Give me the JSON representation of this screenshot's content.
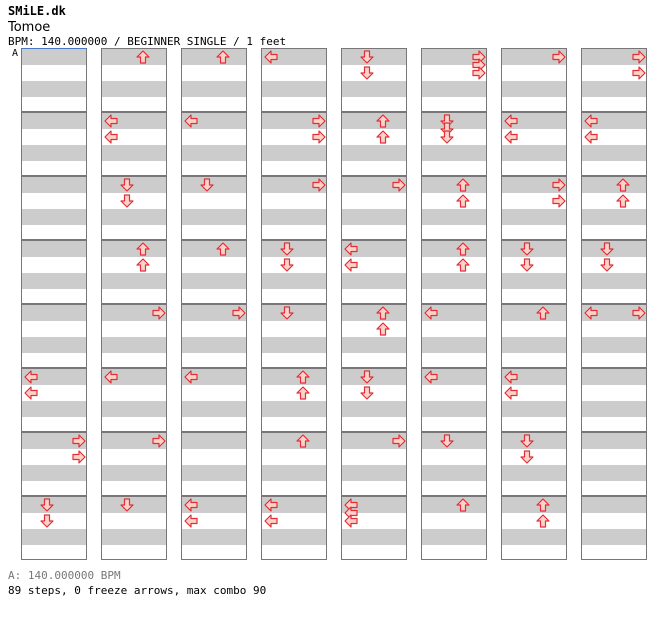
{
  "header": {
    "site": "SMiLE.dk",
    "song_title": "Tomoe",
    "meta": "BPM: 140.000000 / BEGINNER SINGLE / 1 feet",
    "bpm_marker": "A"
  },
  "footer": {
    "bpm_line": "A: 140.000000 BPM",
    "stats": "89 steps, 0 freeze arrows, max combo 90"
  },
  "colors": {
    "arrow_fill": "#ffd0d0",
    "arrow_stroke": "#e03030",
    "beat_band": "#cccccc"
  },
  "chart": {
    "columns": 8,
    "measures_per_column": 8,
    "rows_per_measure": 8,
    "lanes": [
      "left",
      "down",
      "up",
      "right"
    ],
    "notes": [
      {
        "c": 0,
        "m": 5,
        "r": 0,
        "d": "left"
      },
      {
        "c": 0,
        "m": 5,
        "r": 2,
        "d": "left"
      },
      {
        "c": 0,
        "m": 6,
        "r": 0,
        "d": "right"
      },
      {
        "c": 0,
        "m": 6,
        "r": 2,
        "d": "right"
      },
      {
        "c": 0,
        "m": 7,
        "r": 0,
        "d": "down"
      },
      {
        "c": 0,
        "m": 7,
        "r": 2,
        "d": "down"
      },
      {
        "c": 1,
        "m": 0,
        "r": 0,
        "d": "up"
      },
      {
        "c": 1,
        "m": 1,
        "r": 0,
        "d": "left"
      },
      {
        "c": 1,
        "m": 1,
        "r": 2,
        "d": "left"
      },
      {
        "c": 1,
        "m": 2,
        "r": 0,
        "d": "down"
      },
      {
        "c": 1,
        "m": 2,
        "r": 2,
        "d": "down"
      },
      {
        "c": 1,
        "m": 3,
        "r": 0,
        "d": "up"
      },
      {
        "c": 1,
        "m": 3,
        "r": 2,
        "d": "up"
      },
      {
        "c": 1,
        "m": 4,
        "r": 0,
        "d": "right"
      },
      {
        "c": 1,
        "m": 5,
        "r": 0,
        "d": "left"
      },
      {
        "c": 1,
        "m": 6,
        "r": 0,
        "d": "right"
      },
      {
        "c": 1,
        "m": 7,
        "r": 0,
        "d": "down"
      },
      {
        "c": 2,
        "m": 0,
        "r": 0,
        "d": "up"
      },
      {
        "c": 2,
        "m": 1,
        "r": 0,
        "d": "left"
      },
      {
        "c": 2,
        "m": 2,
        "r": 0,
        "d": "down"
      },
      {
        "c": 2,
        "m": 3,
        "r": 0,
        "d": "up"
      },
      {
        "c": 2,
        "m": 4,
        "r": 0,
        "d": "right"
      },
      {
        "c": 2,
        "m": 5,
        "r": 0,
        "d": "left"
      },
      {
        "c": 2,
        "m": 7,
        "r": 0,
        "d": "left"
      },
      {
        "c": 2,
        "m": 7,
        "r": 2,
        "d": "left"
      },
      {
        "c": 3,
        "m": 0,
        "r": 0,
        "d": "left"
      },
      {
        "c": 3,
        "m": 1,
        "r": 0,
        "d": "right"
      },
      {
        "c": 3,
        "m": 1,
        "r": 2,
        "d": "right"
      },
      {
        "c": 3,
        "m": 2,
        "r": 0,
        "d": "right"
      },
      {
        "c": 3,
        "m": 3,
        "r": 0,
        "d": "down"
      },
      {
        "c": 3,
        "m": 3,
        "r": 2,
        "d": "down"
      },
      {
        "c": 3,
        "m": 4,
        "r": 0,
        "d": "down"
      },
      {
        "c": 3,
        "m": 5,
        "r": 0,
        "d": "up"
      },
      {
        "c": 3,
        "m": 5,
        "r": 2,
        "d": "up"
      },
      {
        "c": 3,
        "m": 6,
        "r": 0,
        "d": "up"
      },
      {
        "c": 3,
        "m": 7,
        "r": 0,
        "d": "left"
      },
      {
        "c": 3,
        "m": 7,
        "r": 2,
        "d": "left"
      },
      {
        "c": 4,
        "m": 0,
        "r": 0,
        "d": "down"
      },
      {
        "c": 4,
        "m": 0,
        "r": 2,
        "d": "down"
      },
      {
        "c": 4,
        "m": 1,
        "r": 0,
        "d": "up"
      },
      {
        "c": 4,
        "m": 1,
        "r": 2,
        "d": "up"
      },
      {
        "c": 4,
        "m": 2,
        "r": 0,
        "d": "right"
      },
      {
        "c": 4,
        "m": 3,
        "r": 0,
        "d": "left"
      },
      {
        "c": 4,
        "m": 3,
        "r": 2,
        "d": "left"
      },
      {
        "c": 4,
        "m": 4,
        "r": 0,
        "d": "up"
      },
      {
        "c": 4,
        "m": 4,
        "r": 2,
        "d": "up"
      },
      {
        "c": 4,
        "m": 5,
        "r": 0,
        "d": "down"
      },
      {
        "c": 4,
        "m": 5,
        "r": 2,
        "d": "down"
      },
      {
        "c": 4,
        "m": 6,
        "r": 0,
        "d": "right"
      },
      {
        "c": 4,
        "m": 7,
        "r": 0,
        "d": "left"
      },
      {
        "c": 4,
        "m": 7,
        "r": 1,
        "d": "left"
      },
      {
        "c": 4,
        "m": 7,
        "r": 2,
        "d": "left"
      },
      {
        "c": 5,
        "m": 0,
        "r": 0,
        "d": "right"
      },
      {
        "c": 5,
        "m": 0,
        "r": 1,
        "d": "right"
      },
      {
        "c": 5,
        "m": 0,
        "r": 2,
        "d": "right"
      },
      {
        "c": 5,
        "m": 1,
        "r": 0,
        "d": "down"
      },
      {
        "c": 5,
        "m": 1,
        "r": 1,
        "d": "down"
      },
      {
        "c": 5,
        "m": 1,
        "r": 2,
        "d": "down"
      },
      {
        "c": 5,
        "m": 2,
        "r": 0,
        "d": "up"
      },
      {
        "c": 5,
        "m": 2,
        "r": 2,
        "d": "up"
      },
      {
        "c": 5,
        "m": 3,
        "r": 0,
        "d": "up"
      },
      {
        "c": 5,
        "m": 3,
        "r": 2,
        "d": "up"
      },
      {
        "c": 5,
        "m": 4,
        "r": 0,
        "d": "left"
      },
      {
        "c": 5,
        "m": 5,
        "r": 0,
        "d": "left"
      },
      {
        "c": 5,
        "m": 6,
        "r": 0,
        "d": "down"
      },
      {
        "c": 5,
        "m": 7,
        "r": 0,
        "d": "up"
      },
      {
        "c": 6,
        "m": 0,
        "r": 0,
        "d": "right"
      },
      {
        "c": 6,
        "m": 1,
        "r": 0,
        "d": "left"
      },
      {
        "c": 6,
        "m": 1,
        "r": 2,
        "d": "left"
      },
      {
        "c": 6,
        "m": 2,
        "r": 0,
        "d": "right"
      },
      {
        "c": 6,
        "m": 2,
        "r": 2,
        "d": "right"
      },
      {
        "c": 6,
        "m": 3,
        "r": 0,
        "d": "down"
      },
      {
        "c": 6,
        "m": 3,
        "r": 2,
        "d": "down"
      },
      {
        "c": 6,
        "m": 4,
        "r": 0,
        "d": "up"
      },
      {
        "c": 6,
        "m": 5,
        "r": 0,
        "d": "left"
      },
      {
        "c": 6,
        "m": 5,
        "r": 2,
        "d": "left"
      },
      {
        "c": 6,
        "m": 6,
        "r": 0,
        "d": "down"
      },
      {
        "c": 6,
        "m": 6,
        "r": 2,
        "d": "down"
      },
      {
        "c": 6,
        "m": 7,
        "r": 0,
        "d": "up"
      },
      {
        "c": 6,
        "m": 7,
        "r": 2,
        "d": "up"
      },
      {
        "c": 7,
        "m": 0,
        "r": 0,
        "d": "right"
      },
      {
        "c": 7,
        "m": 0,
        "r": 2,
        "d": "right"
      },
      {
        "c": 7,
        "m": 1,
        "r": 0,
        "d": "left"
      },
      {
        "c": 7,
        "m": 1,
        "r": 2,
        "d": "left"
      },
      {
        "c": 7,
        "m": 2,
        "r": 0,
        "d": "up"
      },
      {
        "c": 7,
        "m": 2,
        "r": 2,
        "d": "up"
      },
      {
        "c": 7,
        "m": 3,
        "r": 0,
        "d": "down"
      },
      {
        "c": 7,
        "m": 3,
        "r": 2,
        "d": "down"
      },
      {
        "c": 7,
        "m": 4,
        "r": 0,
        "d": "left"
      },
      {
        "c": 7,
        "m": 4,
        "r": 0,
        "d": "right"
      }
    ]
  }
}
